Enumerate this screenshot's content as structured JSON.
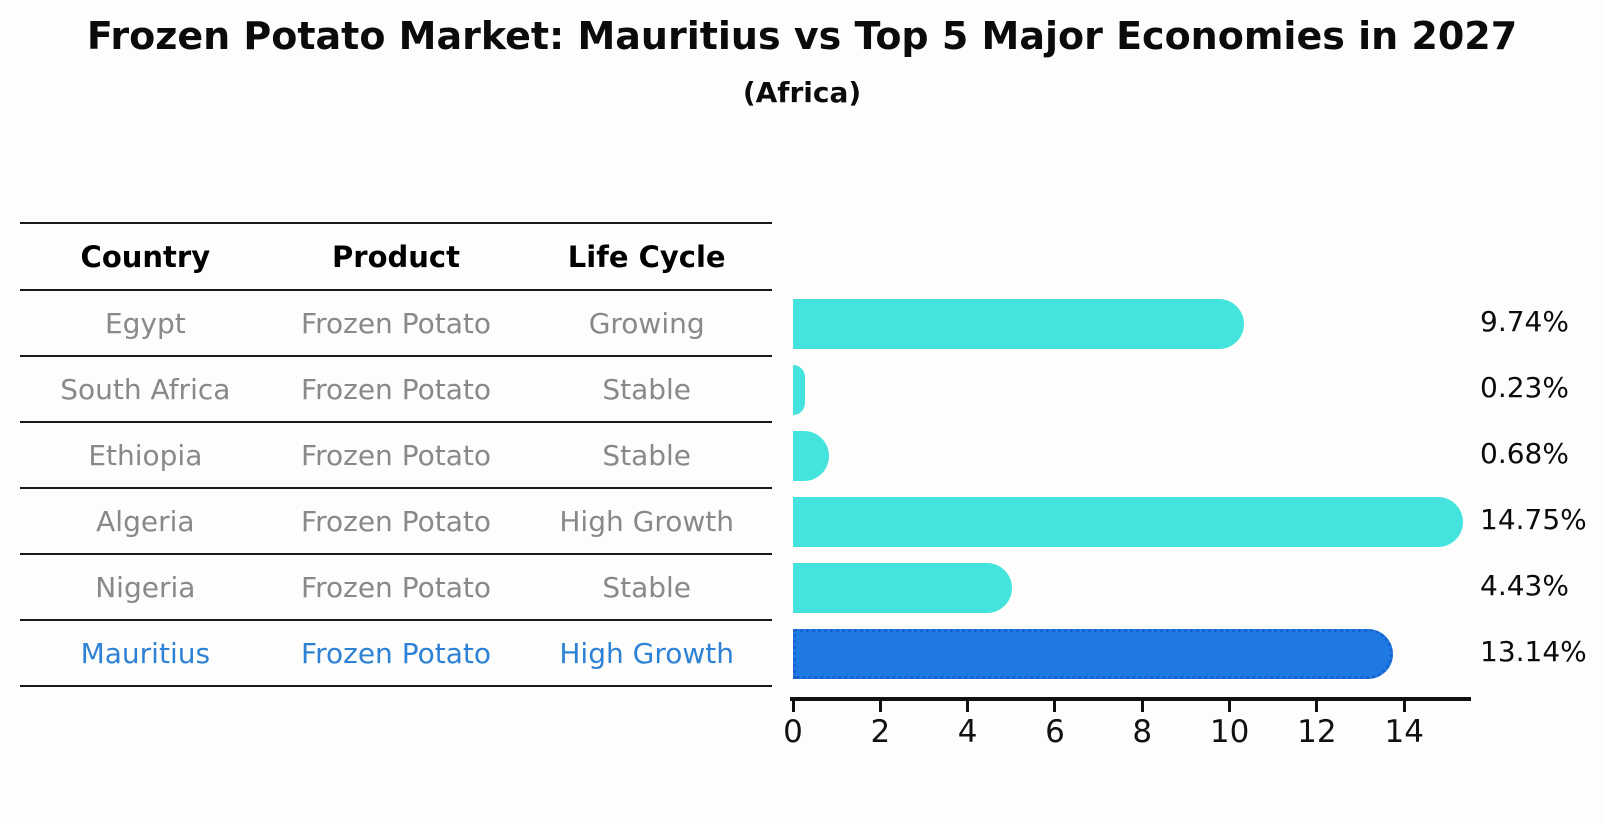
{
  "title": "Frozen Potato Market: Mauritius vs Top 5 Major Economies in 2027",
  "subtitle": "(Africa)",
  "table": {
    "headers": [
      "Country",
      "Product",
      "Life Cycle"
    ],
    "rows": [
      {
        "country": "Egypt",
        "product": "Frozen Potato",
        "life_cycle": "Growing",
        "highlight": false
      },
      {
        "country": "South Africa",
        "product": "Frozen Potato",
        "life_cycle": "Stable",
        "highlight": false
      },
      {
        "country": "Ethiopia",
        "product": "Frozen Potato",
        "life_cycle": "Stable",
        "highlight": false
      },
      {
        "country": "Algeria",
        "product": "Frozen Potato",
        "life_cycle": "High Growth",
        "highlight": false
      },
      {
        "country": "Nigeria",
        "product": "Frozen Potato",
        "life_cycle": "Stable",
        "highlight": false
      },
      {
        "country": "Mauritius",
        "product": "Frozen Potato",
        "life_cycle": "High Growth",
        "highlight": true
      }
    ]
  },
  "chart_data": {
    "type": "bar",
    "orientation": "horizontal",
    "title": "Frozen Potato Market: Mauritius vs Top 5 Major Economies in 2027",
    "subtitle": "(Africa)",
    "categories": [
      "Egypt",
      "South Africa",
      "Ethiopia",
      "Algeria",
      "Nigeria",
      "Mauritius"
    ],
    "values": [
      9.74,
      0.23,
      0.68,
      14.75,
      4.43,
      13.14
    ],
    "value_labels": [
      "9.74%",
      "0.23%",
      "0.68%",
      "14.75%",
      "4.43%",
      "13.14%"
    ],
    "xticks": [
      "0",
      "2",
      "4",
      "6",
      "8",
      "10",
      "12",
      "14"
    ],
    "xlim": [
      0,
      15.5
    ],
    "xlabel": "",
    "ylabel": "",
    "grid": false,
    "legend": "none",
    "highlight_index": 5,
    "bar_color_default": "#45E3DD",
    "bar_color_highlight": "#1E79E3",
    "bar_border_highlight": "#1863CF",
    "text_color_highlight": "#2E82D6",
    "text_color_rows": "#898989"
  }
}
